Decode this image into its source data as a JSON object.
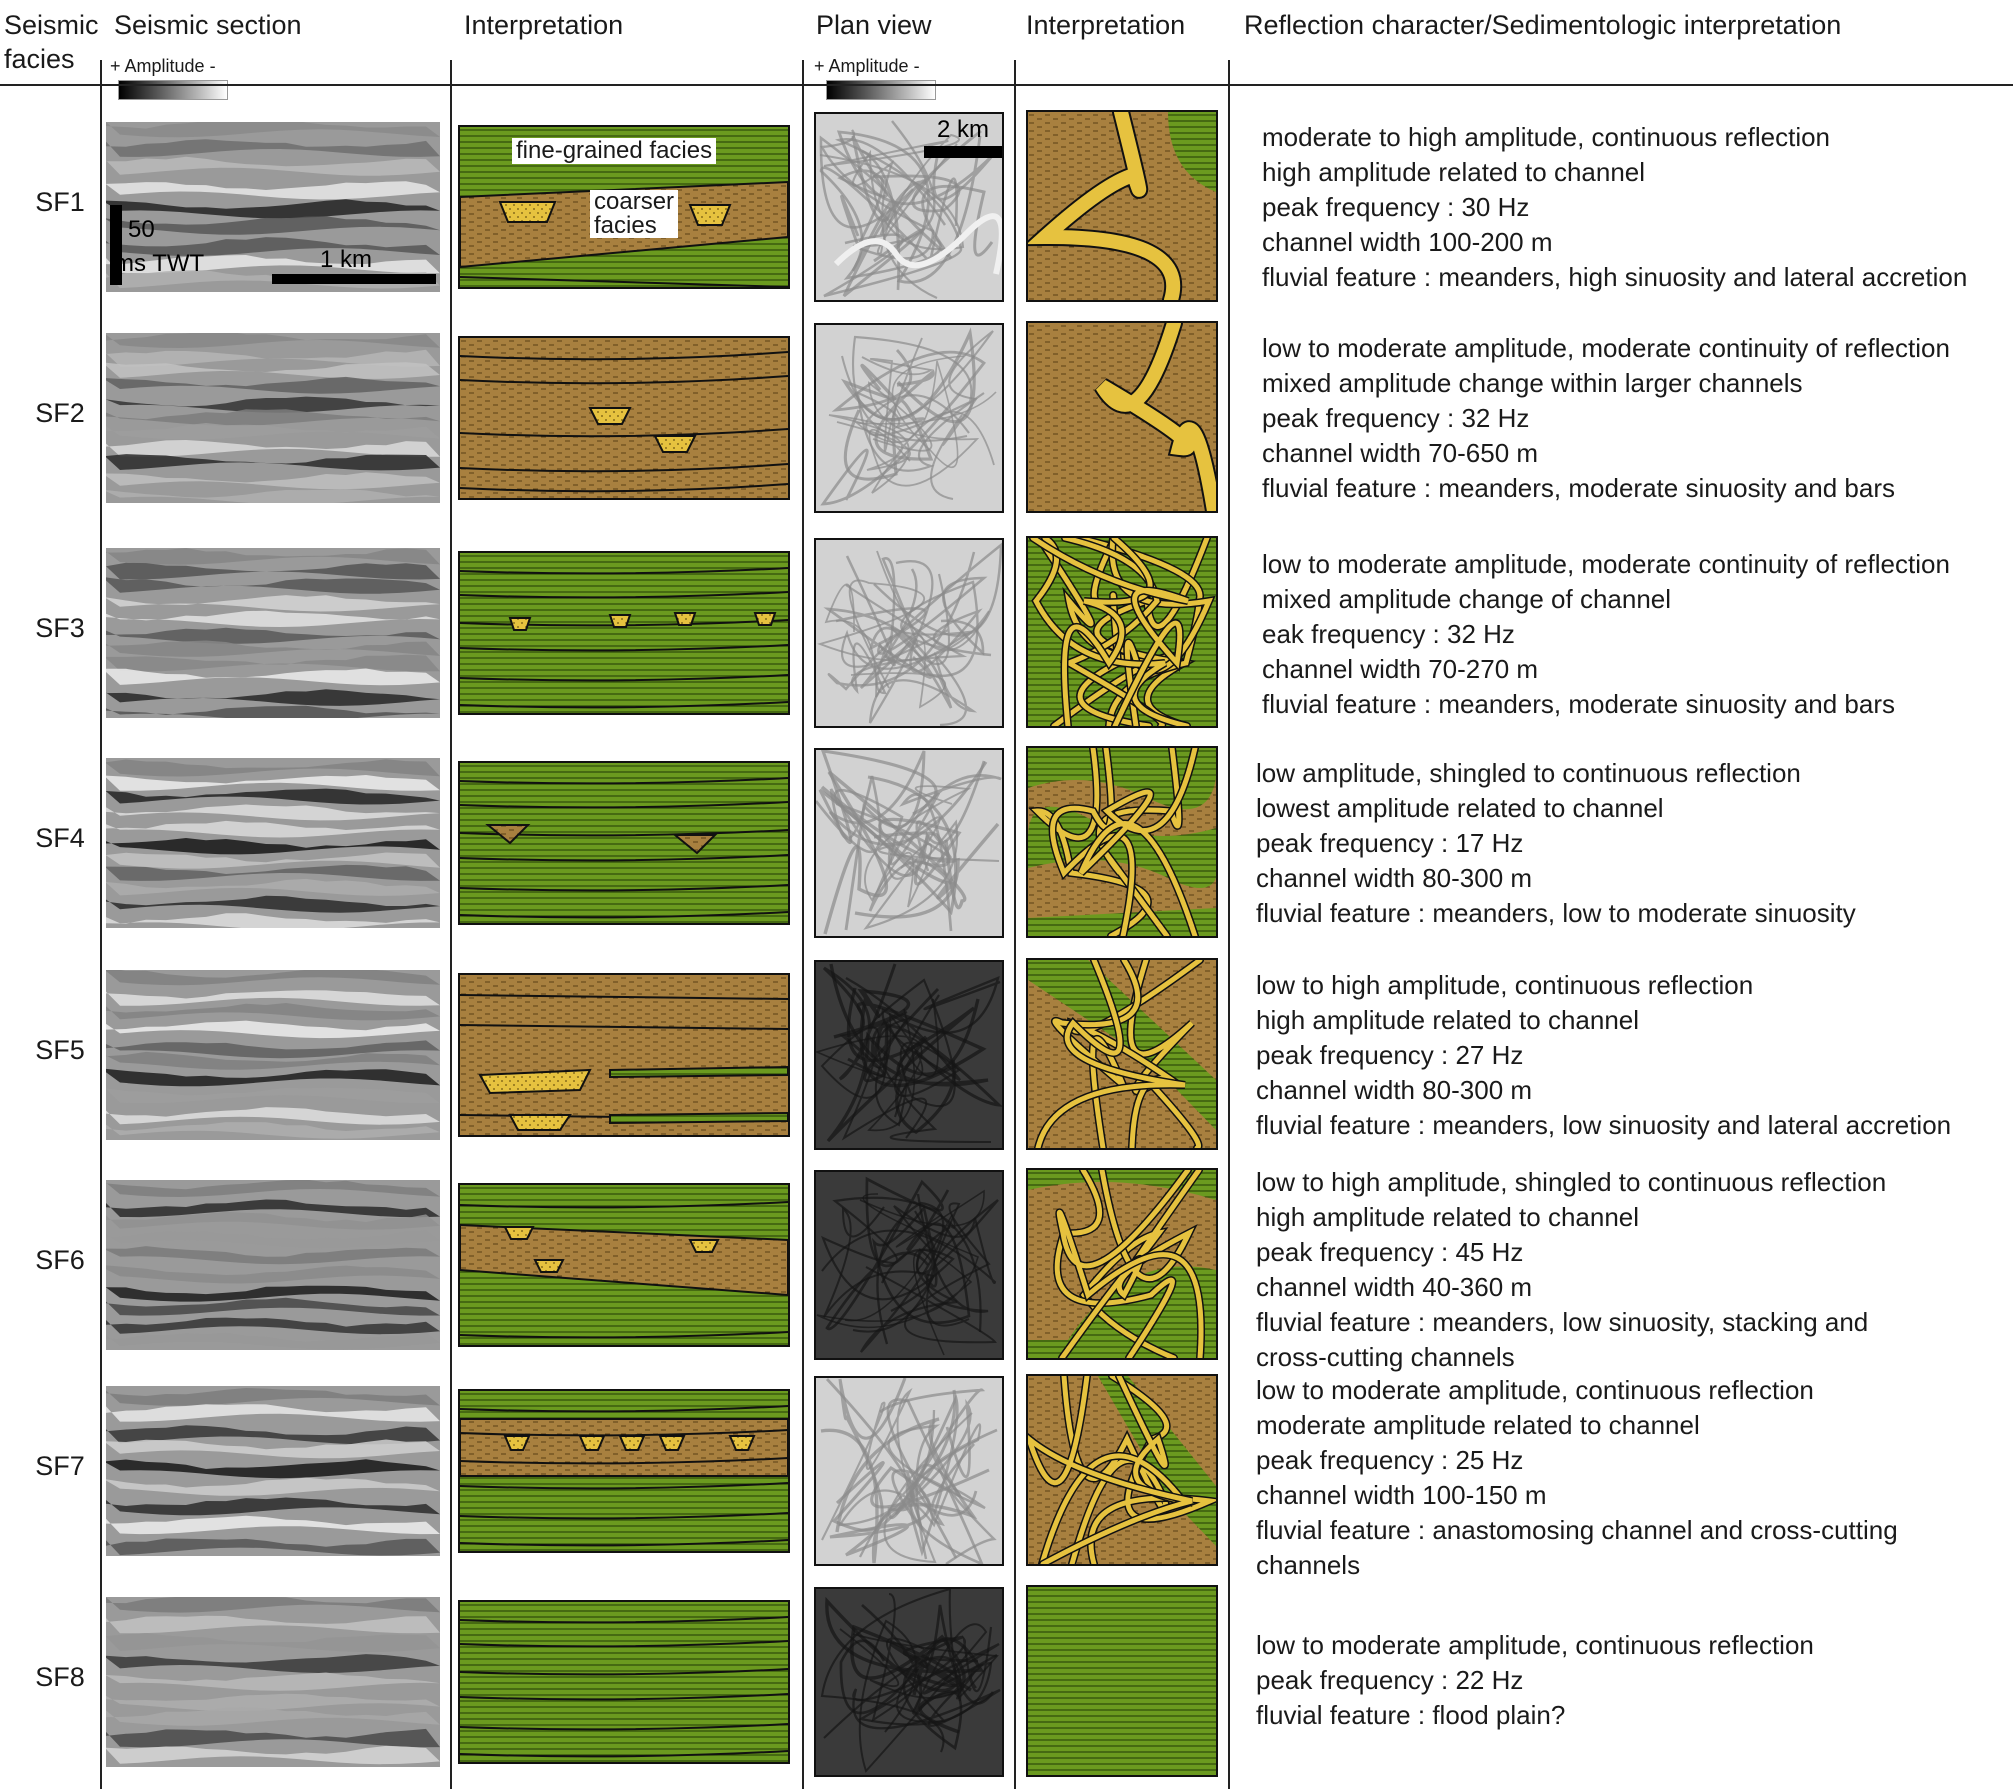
{
  "headers": {
    "col1": "Seismic",
    "col1b": "facies",
    "col2": "Seismic section",
    "col3": "Interpretation",
    "col4": "Plan view",
    "col5": "Interpretation",
    "col6": "Reflection character/Sedimentologic interpretation"
  },
  "amplitude_label": "+ Amplitude -",
  "annotations": {
    "vertical_scale": "50",
    "vertical_unit": "ms TWT",
    "horizontal_scale": "1 km",
    "plan_scale": "2 km",
    "fine": "fine-grained facies",
    "coarse1": "coarser",
    "coarse2": "facies"
  },
  "colors": {
    "green": "#6b9a1f",
    "brown": "#a8803f",
    "sand": "#e6c23f",
    "line": "#1a1a1a"
  },
  "rows": [
    {
      "id": "SF1",
      "lines": [
        "moderate to high amplitude, continuous reflection",
        "high amplitude related to channel",
        "peak frequency : 30 Hz",
        "channel width 100-200 m",
        "fluvial feature : meanders, high sinuosity and lateral accretion"
      ]
    },
    {
      "id": "SF2",
      "lines": [
        "low to moderate amplitude, moderate continuity of reflection",
        "mixed amplitude change within larger channels",
        "peak frequency : 32 Hz",
        "channel width 70-650 m",
        "fluvial feature : meanders, moderate sinuosity and bars"
      ]
    },
    {
      "id": "SF3",
      "lines": [
        "low to moderate amplitude, moderate continuity of reflection",
        "mixed amplitude change of channel",
        "eak frequency : 32 Hz",
        "channel width 70-270 m",
        "fluvial feature : meanders, moderate sinuosity and bars"
      ]
    },
    {
      "id": "SF4",
      "lines": [
        "low amplitude,  shingled  to continuous reflection",
        "lowest amplitude related to channel",
        "peak frequency : 17 Hz",
        "channel width 80-300 m",
        "fluvial feature : meanders, low to moderate sinuosity"
      ]
    },
    {
      "id": "SF5",
      "lines": [
        "low to high amplitude, continuous reflection",
        "high amplitude related to channel",
        "peak frequency : 27 Hz",
        "channel width 80-300 m",
        "fluvial feature : meanders, low sinuosity and lateral accretion"
      ]
    },
    {
      "id": "SF6",
      "lines": [
        "low to high amplitude,  shingled  to continuous reflection",
        "high amplitude related to channel",
        "peak frequency : 45 Hz",
        "channel width 40-360 m",
        "fluvial feature : meanders, low sinuosity, stacking and",
        "cross-cutting channels"
      ]
    },
    {
      "id": "SF7",
      "lines": [
        "low to moderate amplitude, continuous reflection",
        "moderate amplitude related to channel",
        "peak frequency :  25 Hz",
        "channel width 100-150 m",
        "fluvial feature : anastomosing channel and cross-cutting",
        "channels"
      ]
    },
    {
      "id": "SF8",
      "lines": [
        "low to moderate amplitude, continuous reflection",
        "peak frequency :  22 Hz",
        "fluvial feature : flood plain?"
      ]
    }
  ]
}
